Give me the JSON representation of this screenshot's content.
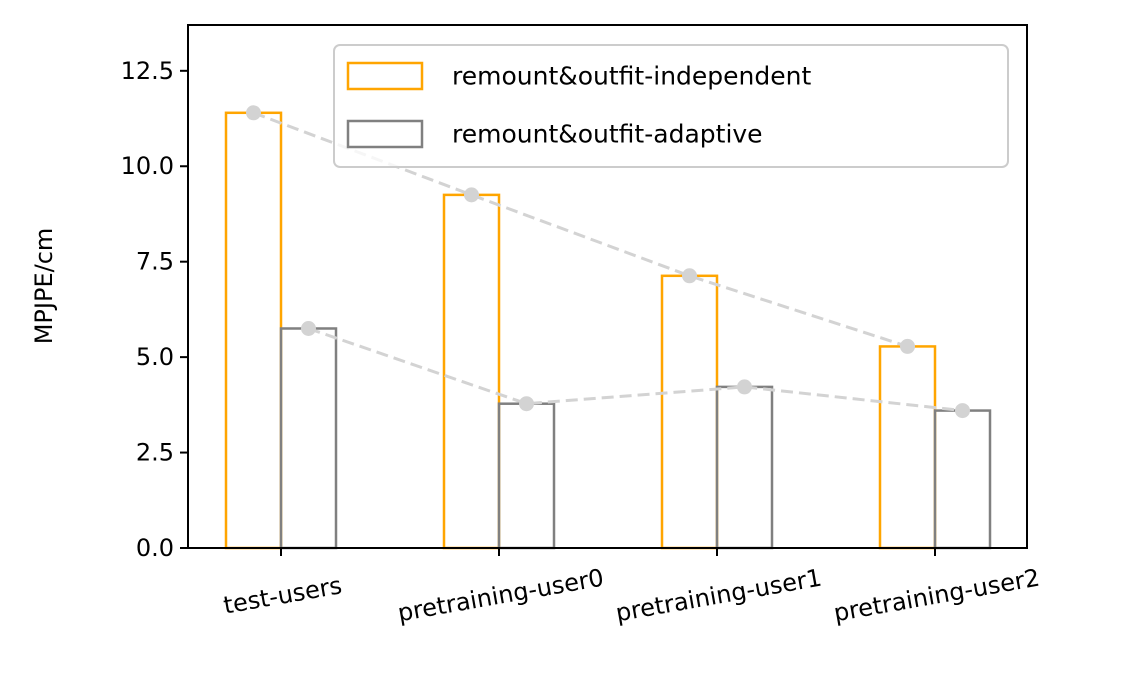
{
  "chart_data": {
    "type": "bar",
    "categories": [
      "test-users",
      "pretraining-user0",
      "pretraining-user1",
      "pretraining-user2"
    ],
    "series": [
      {
        "name": "remount&outfit-independent",
        "values": [
          11.4,
          9.25,
          7.13,
          5.28
        ],
        "color": "#FFA500"
      },
      {
        "name": "remount&outfit-adaptive",
        "values": [
          5.75,
          3.78,
          4.22,
          3.6
        ],
        "color": "#808080"
      }
    ],
    "trend_line_color": "#D3D3D3",
    "xlabel": "",
    "ylabel": "MPJPE/cm",
    "ylim": [
      0,
      13.7
    ],
    "yticks": [
      "0.0",
      "2.5",
      "5.0",
      "7.5",
      "10.0",
      "12.5"
    ],
    "grid": false,
    "legend_position": "upper right"
  }
}
